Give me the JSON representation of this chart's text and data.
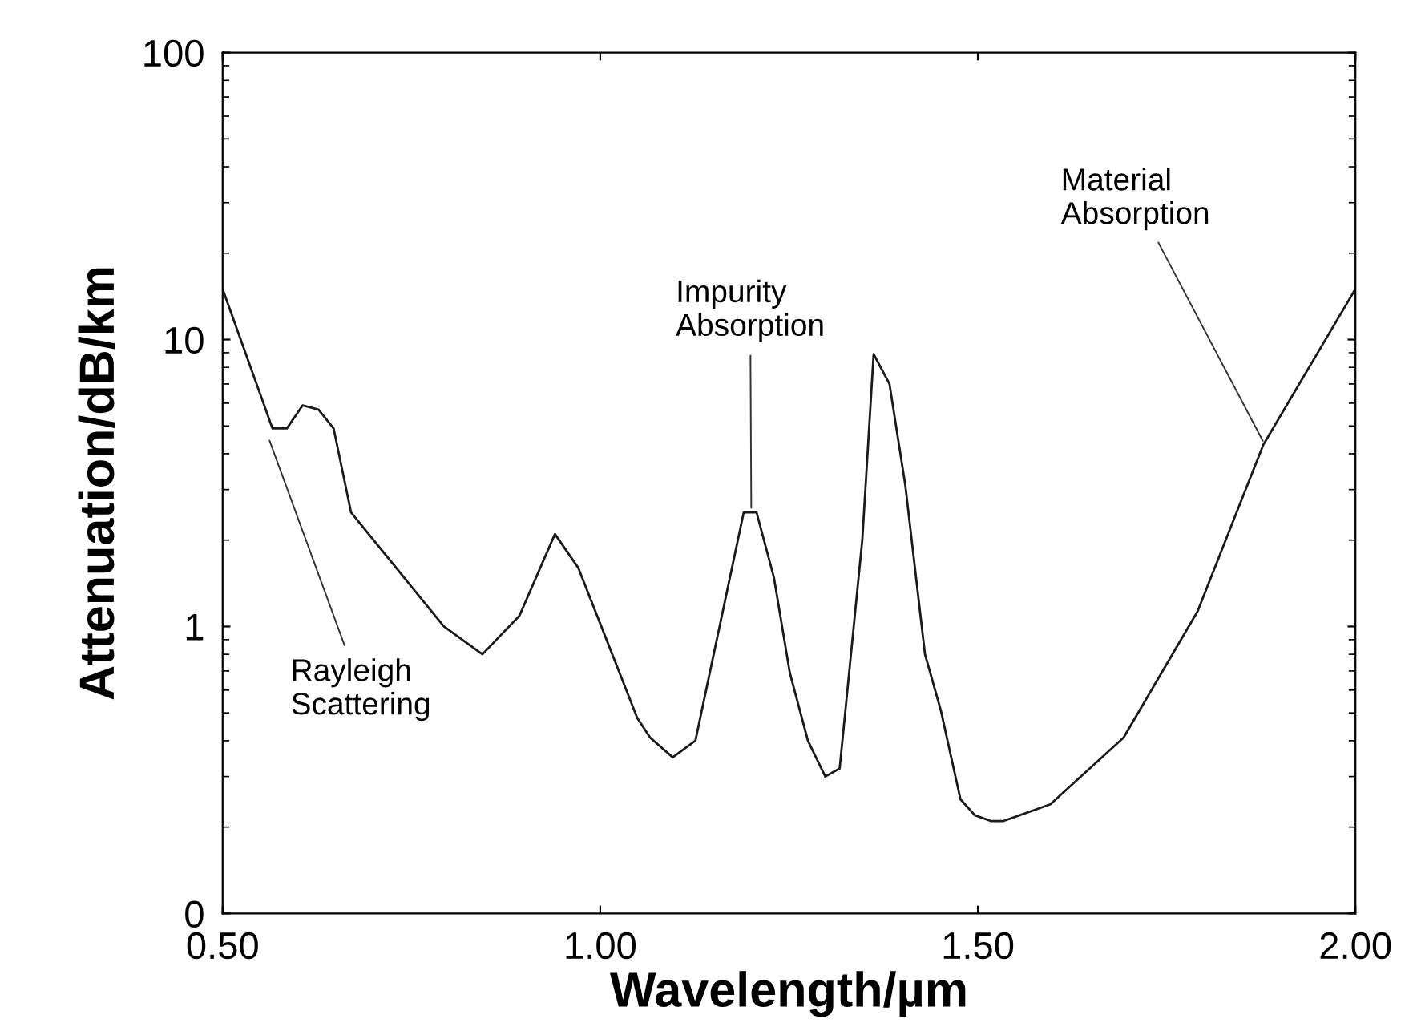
{
  "chart_data": {
    "type": "line",
    "xlabel": "Wavelength/µm",
    "ylabel": "Attenuation/dB/km",
    "log": "y",
    "xlim": [
      0.5,
      2.0
    ],
    "xticks": [
      {
        "value": 0.5,
        "label": "0.50"
      },
      {
        "value": 1.0,
        "label": "1.00"
      },
      {
        "value": 1.5,
        "label": "1.50"
      },
      {
        "value": 2.0,
        "label": "2.00"
      }
    ],
    "ylim": [
      0.1,
      100
    ],
    "yticks": [
      {
        "value": 0.1,
        "label": "0"
      },
      1,
      10,
      100
    ],
    "grid": false,
    "marker": "none",
    "line_style": "solid",
    "series": [
      {
        "color": "#1a1a1a",
        "x": [
          0.5,
          0.566,
          0.585,
          0.606,
          0.627,
          0.647,
          0.67,
          0.793,
          0.844,
          0.893,
          0.94,
          0.971,
          1.049,
          1.066,
          1.096,
          1.126,
          1.139,
          1.19,
          1.207,
          1.23,
          1.251,
          1.275,
          1.298,
          1.317,
          1.347,
          1.362,
          1.383,
          1.404,
          1.43,
          1.451,
          1.477,
          1.496,
          1.517,
          1.534,
          1.596,
          1.693,
          1.791,
          1.878,
          2.0
        ],
        "values": [
          15,
          4.9,
          4.9,
          5.9,
          5.7,
          4.9,
          2.5,
          1.0,
          0.8,
          1.09,
          2.1,
          1.6,
          0.48,
          0.41,
          0.35,
          0.4,
          0.58,
          2.5,
          2.5,
          1.48,
          0.69,
          0.4,
          0.3,
          0.32,
          2.0,
          8.9,
          7.0,
          3.1,
          0.8,
          0.51,
          0.25,
          0.22,
          0.21,
          0.21,
          0.24,
          0.41,
          1.13,
          4.3,
          15
        ]
      }
    ],
    "annotations": [
      {
        "text": "Rayleigh\nScattering",
        "x": 0.56,
        "y": 4.6
      },
      {
        "text": "Impurity\nAbsorption",
        "x": 1.2,
        "y": 2.5
      },
      {
        "text": "Material\nAbsorption",
        "x": 1.88,
        "y": 4.3
      }
    ]
  }
}
